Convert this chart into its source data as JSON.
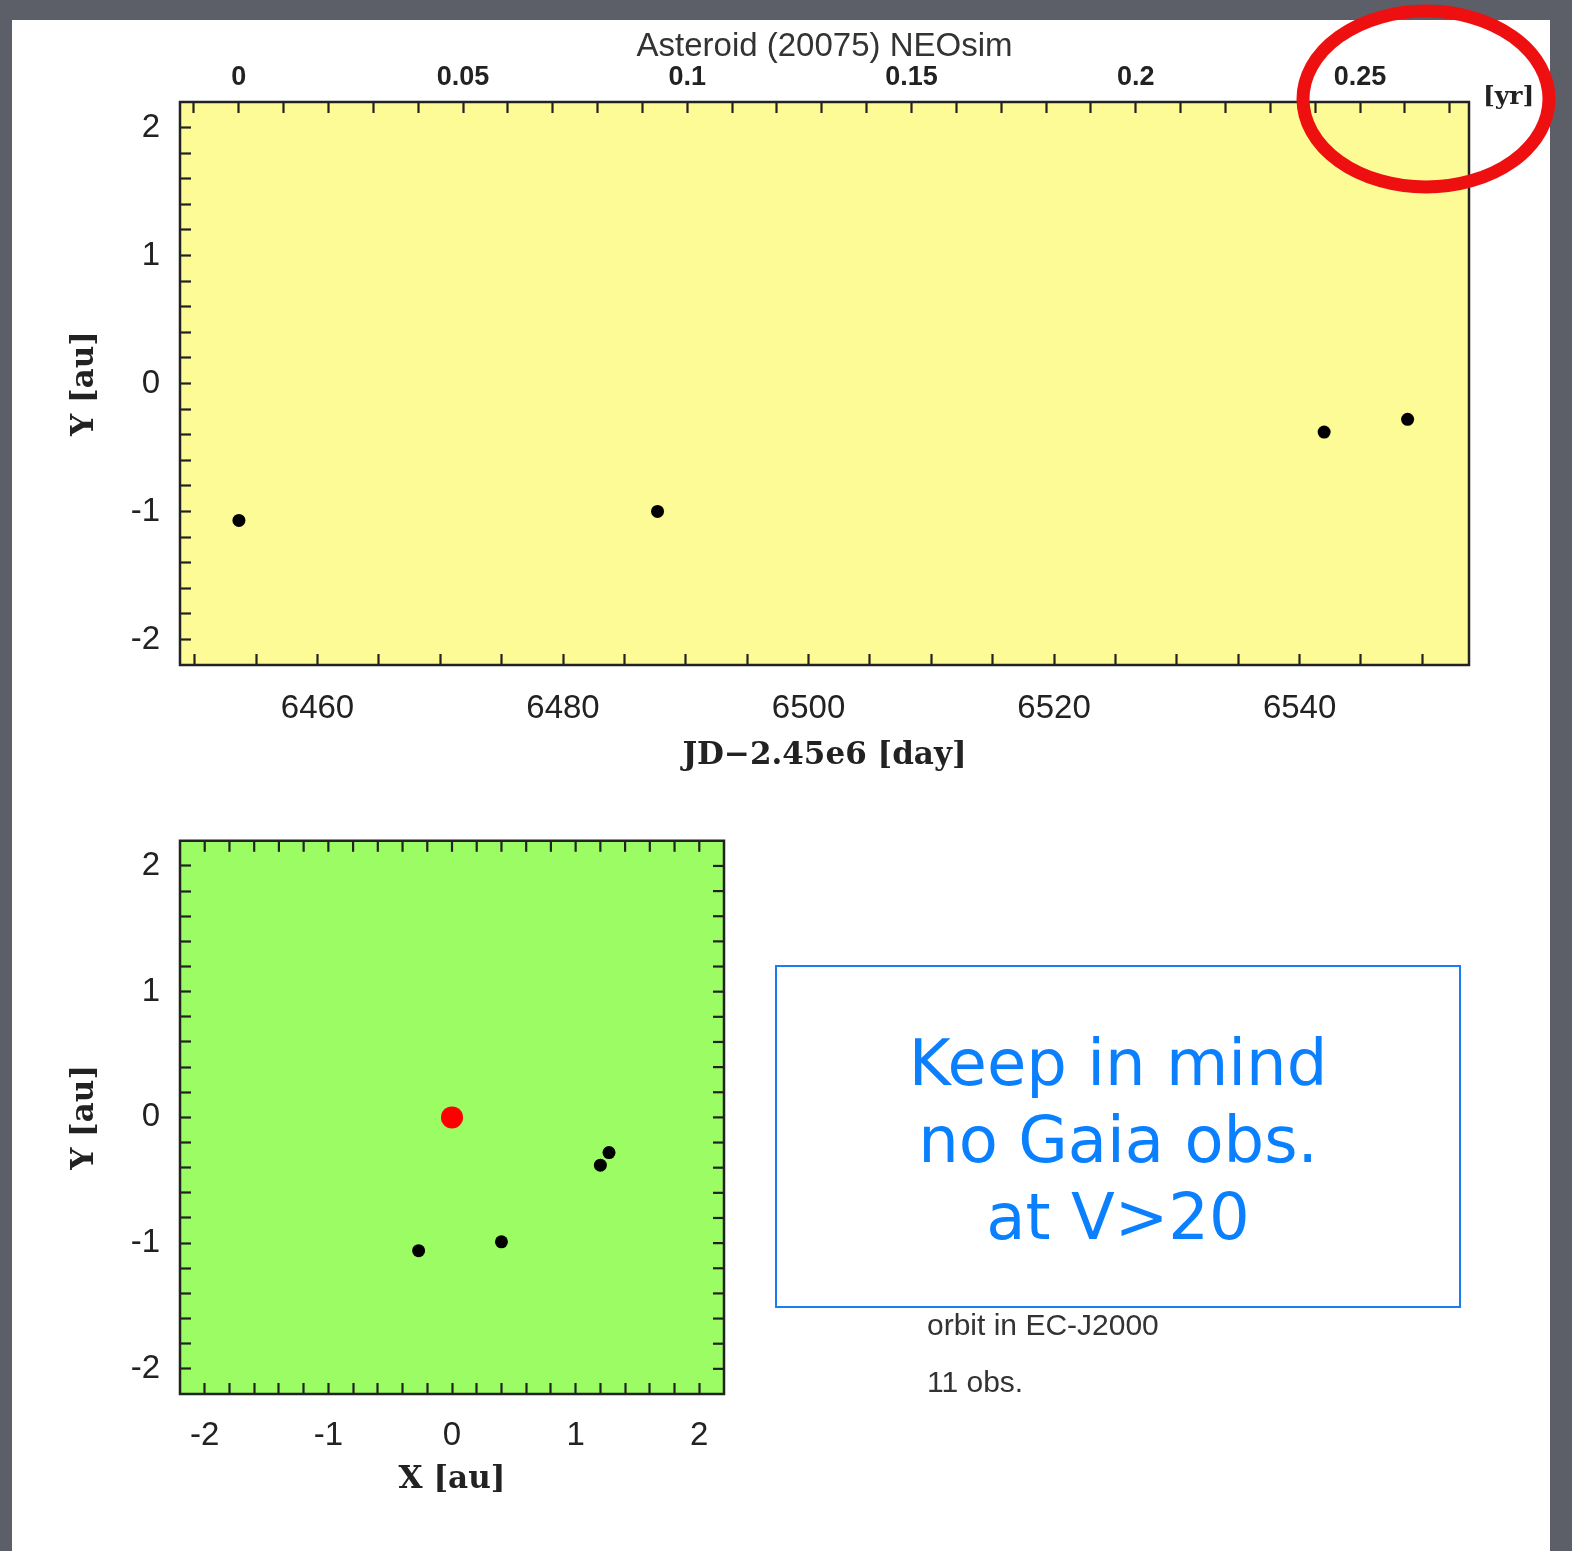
{
  "chart_data": [
    {
      "type": "scatter",
      "title": "Asteroid (20075) NEOsim",
      "xlabel": "JD−2.45e6 [day]",
      "ylabel": "Y [au]",
      "x2label": "[yr]",
      "x": [
        6453.6,
        6487.7,
        6542.0,
        6548.8
      ],
      "series": [
        {
          "color": "#000000",
          "values": [
            -1.07,
            -1.0,
            -0.38,
            -0.28
          ]
        }
      ],
      "marker": "circle",
      "xlim": [
        6448.8,
        6553.8
      ],
      "xticks": [
        {
          "value": 6450,
          "label": null
        },
        {
          "value": 6455,
          "label": null
        },
        6460,
        {
          "value": 6465,
          "label": null
        },
        {
          "value": 6470,
          "label": null
        },
        {
          "value": 6475,
          "label": null
        },
        6480,
        {
          "value": 6485,
          "label": null
        },
        {
          "value": 6490,
          "label": null
        },
        {
          "value": 6495,
          "label": null
        },
        6500,
        {
          "value": 6505,
          "label": null
        },
        {
          "value": 6510,
          "label": null
        },
        {
          "value": 6515,
          "label": null
        },
        6520,
        {
          "value": 6525,
          "label": null
        },
        {
          "value": 6530,
          "label": null
        },
        {
          "value": 6535,
          "label": null
        },
        6540,
        {
          "value": 6545,
          "label": null
        },
        {
          "value": 6550,
          "label": null
        }
      ],
      "x2lim": [
        -0.0131,
        0.2743
      ],
      "x2ticks": [
        {
          "value": -0.01,
          "label": null
        },
        0,
        {
          "value": 0.01,
          "label": null
        },
        {
          "value": 0.02,
          "label": null
        },
        {
          "value": 0.03,
          "label": null
        },
        {
          "value": 0.04,
          "label": null
        },
        0.05,
        {
          "value": 0.06,
          "label": null
        },
        {
          "value": 0.07,
          "label": null
        },
        {
          "value": 0.08,
          "label": null
        },
        {
          "value": 0.09,
          "label": null
        },
        0.1,
        {
          "value": 0.11,
          "label": null
        },
        {
          "value": 0.12,
          "label": null
        },
        {
          "value": 0.13,
          "label": null
        },
        {
          "value": 0.14,
          "label": null
        },
        0.15,
        {
          "value": 0.16,
          "label": null
        },
        {
          "value": 0.17,
          "label": null
        },
        {
          "value": 0.18,
          "label": null
        },
        {
          "value": 0.19,
          "label": null
        },
        0.2,
        {
          "value": 0.21,
          "label": null
        },
        {
          "value": 0.22,
          "label": null
        },
        {
          "value": 0.23,
          "label": null
        },
        {
          "value": 0.24,
          "label": null
        },
        0.25,
        {
          "value": 0.26,
          "label": null
        },
        {
          "value": 0.27,
          "label": null
        }
      ],
      "ylim": [
        -2.2,
        2.2
      ],
      "yticks": [
        -2,
        {
          "value": -1.8,
          "label": null
        },
        {
          "value": -1.6,
          "label": null
        },
        {
          "value": -1.4,
          "label": null
        },
        {
          "value": -1.2,
          "label": null
        },
        -1,
        {
          "value": -0.8,
          "label": null
        },
        {
          "value": -0.6,
          "label": null
        },
        {
          "value": -0.4,
          "label": null
        },
        {
          "value": -0.2,
          "label": null
        },
        0,
        {
          "value": 0.2,
          "label": null
        },
        {
          "value": 0.4,
          "label": null
        },
        {
          "value": 0.6,
          "label": null
        },
        {
          "value": 0.8,
          "label": null
        },
        1,
        {
          "value": 1.2,
          "label": null
        },
        {
          "value": 1.4,
          "label": null
        },
        {
          "value": 1.6,
          "label": null
        },
        {
          "value": 1.8,
          "label": null
        },
        2
      ]
    },
    {
      "type": "scatter",
      "xlabel": "X [au]",
      "ylabel": "Y [au]",
      "series": [
        {
          "color": "#000000",
          "x": [
            -0.27,
            0.4,
            1.2,
            1.27
          ],
          "values": [
            -1.06,
            -0.99,
            -0.38,
            -0.28
          ]
        },
        {
          "color": "#ff0000",
          "x": [
            0
          ],
          "values": [
            0
          ]
        }
      ],
      "marker": "circle",
      "xlim": [
        -2.2,
        2.2
      ],
      "xticks": [
        -2,
        {
          "value": -1.8,
          "label": null
        },
        {
          "value": -1.6,
          "label": null
        },
        {
          "value": -1.4,
          "label": null
        },
        {
          "value": -1.2,
          "label": null
        },
        -1,
        {
          "value": -0.8,
          "label": null
        },
        {
          "value": -0.6,
          "label": null
        },
        {
          "value": -0.4,
          "label": null
        },
        {
          "value": -0.2,
          "label": null
        },
        0,
        {
          "value": 0.2,
          "label": null
        },
        {
          "value": 0.4,
          "label": null
        },
        {
          "value": 0.6,
          "label": null
        },
        {
          "value": 0.8,
          "label": null
        },
        1,
        {
          "value": 1.2,
          "label": null
        },
        {
          "value": 1.4,
          "label": null
        },
        {
          "value": 1.6,
          "label": null
        },
        {
          "value": 1.8,
          "label": null
        },
        2
      ],
      "ylim": [
        -2.2,
        2.2
      ],
      "yticks": [
        -2,
        {
          "value": -1.8,
          "label": null
        },
        {
          "value": -1.6,
          "label": null
        },
        {
          "value": -1.4,
          "label": null
        },
        {
          "value": -1.2,
          "label": null
        },
        -1,
        {
          "value": -0.8,
          "label": null
        },
        {
          "value": -0.6,
          "label": null
        },
        {
          "value": -0.4,
          "label": null
        },
        {
          "value": -0.2,
          "label": null
        },
        0,
        {
          "value": 0.2,
          "label": null
        },
        {
          "value": 0.4,
          "label": null
        },
        {
          "value": 0.6,
          "label": null
        },
        {
          "value": 0.8,
          "label": null
        },
        1,
        {
          "value": 1.2,
          "label": null
        },
        {
          "value": 1.4,
          "label": null
        },
        {
          "value": 1.6,
          "label": null
        },
        {
          "value": 1.8,
          "label": null
        },
        2
      ],
      "annotations": [
        "Keep in mind\nno Gaia obs.\nat V>20",
        "orbit in EC-J2000",
        "11 obs."
      ]
    }
  ]
}
